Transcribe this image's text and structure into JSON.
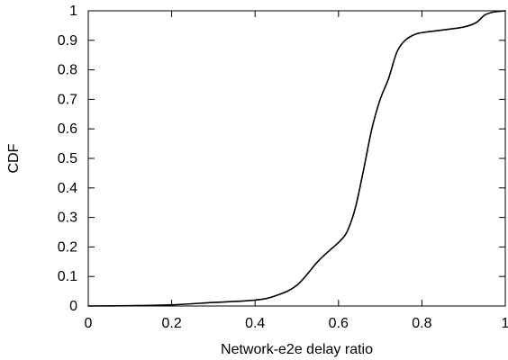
{
  "chart_data": {
    "type": "line",
    "title": "",
    "xlabel": "Network-e2e delay ratio",
    "ylabel": "CDF",
    "xlim": [
      0,
      1
    ],
    "ylim": [
      0,
      1
    ],
    "grid": false,
    "legend": "none",
    "x_ticks": [
      "0",
      "0.2",
      "0.4",
      "0.6",
      "0.8",
      "1"
    ],
    "y_ticks": [
      "0",
      "0.1",
      "0.2",
      "0.3",
      "0.4",
      "0.5",
      "0.6",
      "0.7",
      "0.8",
      "0.9",
      "1"
    ],
    "series": [
      {
        "color": "#000000",
        "x": [
          0.0,
          0.1,
          0.2,
          0.3,
          0.4,
          0.45,
          0.5,
          0.55,
          0.58,
          0.6,
          0.62,
          0.64,
          0.66,
          0.68,
          0.7,
          0.72,
          0.74,
          0.76,
          0.78,
          0.8,
          0.85,
          0.9,
          0.93,
          0.95,
          0.97,
          1.0
        ],
        "y": [
          0.0,
          0.001,
          0.004,
          0.012,
          0.02,
          0.035,
          0.07,
          0.15,
          0.19,
          0.215,
          0.25,
          0.33,
          0.46,
          0.6,
          0.7,
          0.77,
          0.86,
          0.9,
          0.918,
          0.926,
          0.935,
          0.945,
          0.96,
          0.985,
          0.995,
          1.0
        ]
      }
    ]
  }
}
